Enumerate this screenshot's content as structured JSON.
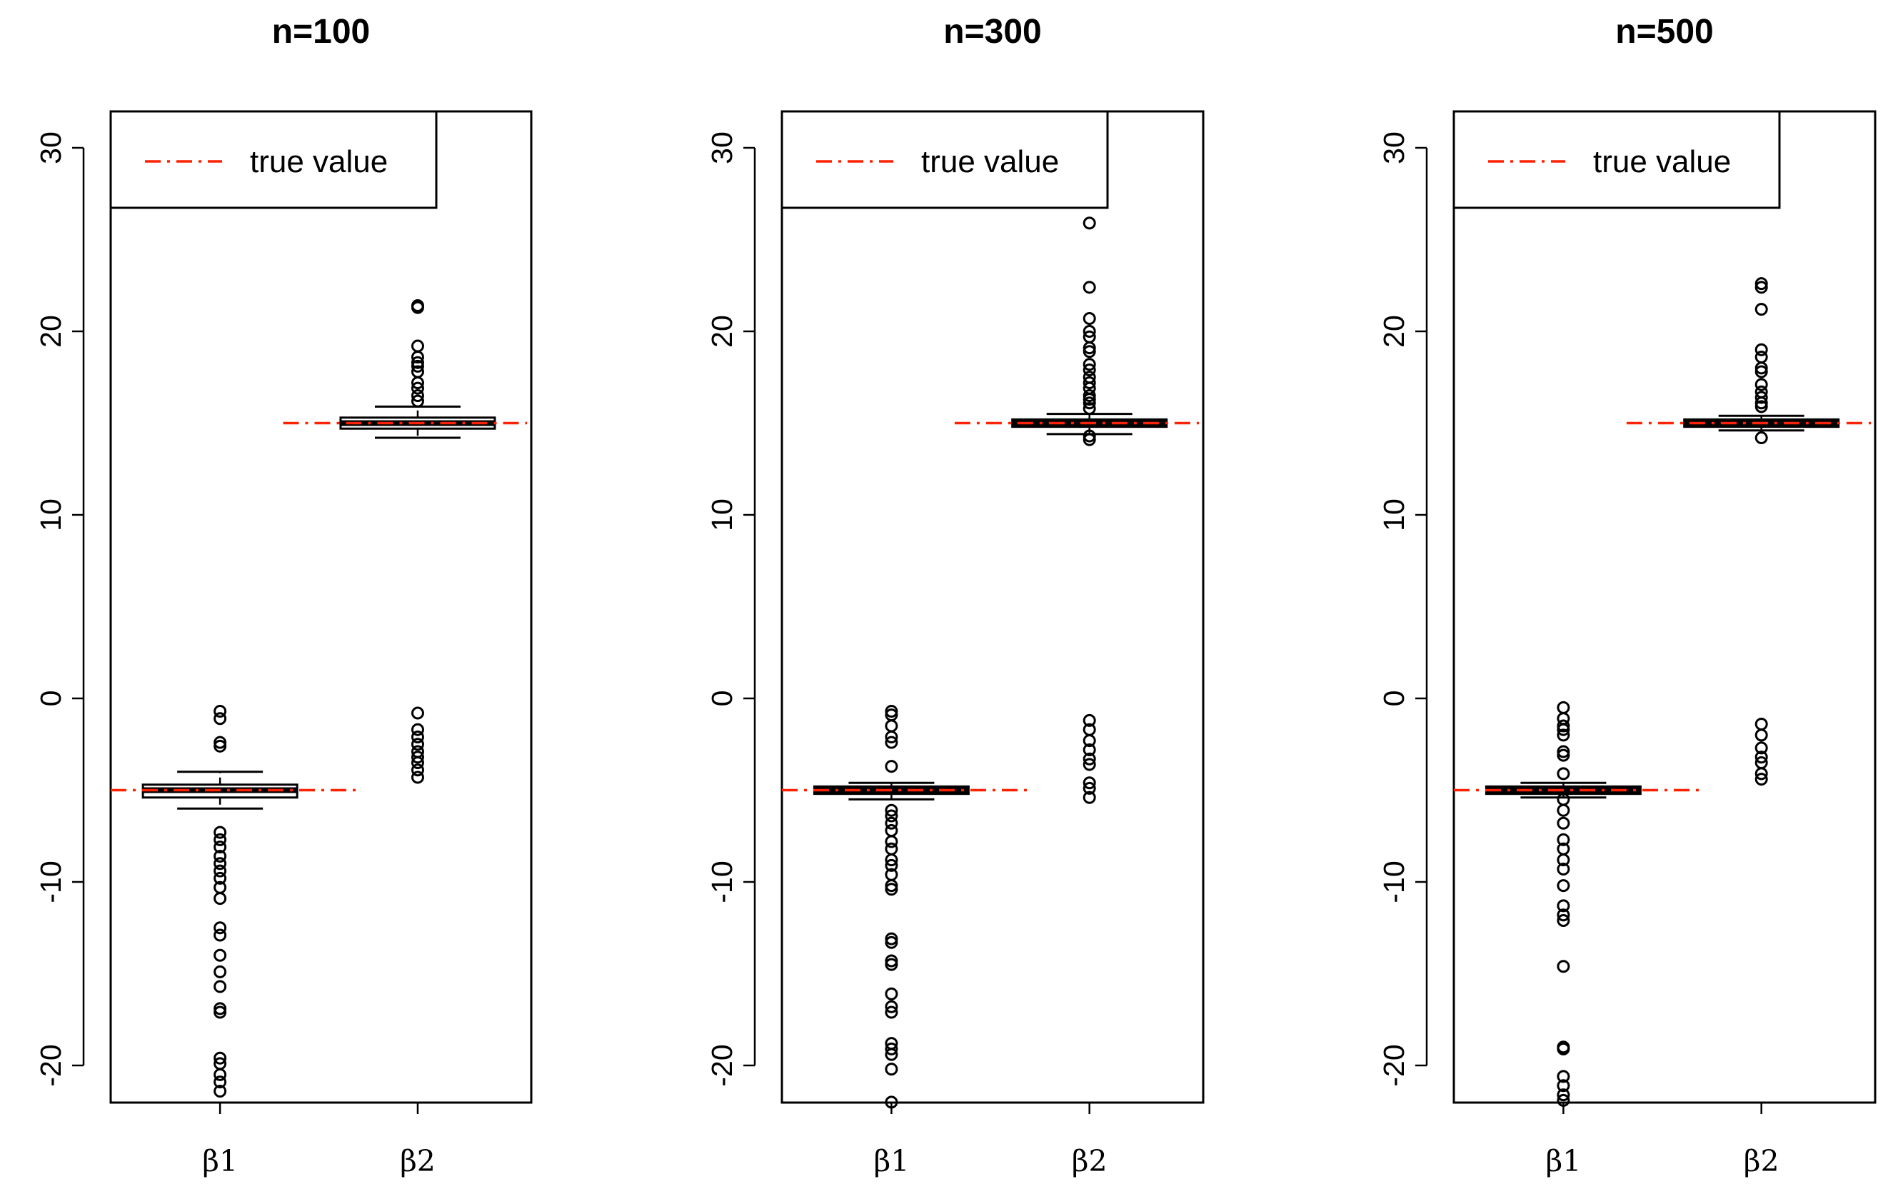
{
  "chart_data": [
    {
      "type": "boxplot",
      "title": "n=100",
      "categories": [
        "β1",
        "β2"
      ],
      "ylim": [
        -22,
        32
      ],
      "yticks": [
        30,
        20,
        10,
        0,
        -10,
        -20
      ],
      "legend": {
        "label": "true value",
        "color": "#ff2200",
        "position": "top-left"
      },
      "true_values": [
        -5,
        15
      ],
      "boxes": [
        {
          "name": "β1",
          "whisker_low": -6.0,
          "q1": -5.4,
          "median": -5.0,
          "q3": -4.7,
          "whisker_high": -4.0,
          "outliers": [
            -0.7,
            -1.1,
            -2.4,
            -2.6,
            -7.3,
            -7.7,
            -8.1,
            -8.6,
            -9.0,
            -9.4,
            -9.8,
            -10.3,
            -10.9,
            -12.5,
            -12.9,
            -14.0,
            -14.9,
            -15.7,
            -16.9,
            -17.1,
            -19.6,
            -19.9,
            -20.5,
            -20.9,
            -21.4
          ]
        },
        {
          "name": "β2",
          "whisker_low": 14.2,
          "q1": 14.7,
          "median": 15.0,
          "q3": 15.3,
          "whisker_high": 15.9,
          "outliers": [
            21.4,
            21.3,
            19.2,
            18.6,
            18.3,
            18.1,
            17.8,
            17.2,
            16.9,
            16.5,
            16.2,
            -0.8,
            -1.7,
            -2.1,
            -2.5,
            -2.9,
            -3.2,
            -3.5,
            -3.9,
            -4.3
          ]
        }
      ]
    },
    {
      "type": "boxplot",
      "title": "n=300",
      "categories": [
        "β1",
        "β2"
      ],
      "ylim": [
        -22,
        32
      ],
      "yticks": [
        30,
        20,
        10,
        0,
        -10,
        -20
      ],
      "legend": {
        "label": "true value",
        "color": "#ff2200",
        "position": "top-left"
      },
      "true_values": [
        -5,
        15
      ],
      "boxes": [
        {
          "name": "β1",
          "whisker_low": -5.5,
          "q1": -5.2,
          "median": -5.0,
          "q3": -4.8,
          "whisker_high": -4.6,
          "outliers": [
            -0.7,
            -0.9,
            -1.5,
            -2.1,
            -2.4,
            -3.7,
            -6.1,
            -6.4,
            -6.8,
            -7.2,
            -7.8,
            -8.2,
            -8.8,
            -9.1,
            -9.6,
            -10.2,
            -10.4,
            -13.1,
            -13.3,
            -14.3,
            -14.5,
            -16.1,
            -16.8,
            -17.1,
            -18.8,
            -19.1,
            -19.4,
            -20.2,
            -22.0
          ]
        },
        {
          "name": "β2",
          "whisker_low": 14.4,
          "q1": 14.8,
          "median": 15.0,
          "q3": 15.2,
          "whisker_high": 15.5,
          "outliers": [
            25.9,
            22.4,
            20.7,
            20.0,
            19.7,
            19.1,
            18.9,
            18.2,
            17.9,
            17.5,
            17.2,
            16.9,
            16.5,
            16.3,
            16.1,
            15.8,
            14.3,
            14.1,
            -1.2,
            -1.7,
            -2.3,
            -2.8,
            -3.3,
            -3.6,
            -4.6,
            -4.9,
            -5.4
          ]
        }
      ]
    },
    {
      "type": "boxplot",
      "title": "n=500",
      "categories": [
        "β1",
        "β2"
      ],
      "ylim": [
        -22,
        32
      ],
      "yticks": [
        30,
        20,
        10,
        0,
        -10,
        -20
      ],
      "legend": {
        "label": "true value",
        "color": "#ff2200",
        "position": "top-left"
      },
      "true_values": [
        -5,
        15
      ],
      "boxes": [
        {
          "name": "β1",
          "whisker_low": -5.4,
          "q1": -5.2,
          "median": -5.0,
          "q3": -4.8,
          "whisker_high": -4.6,
          "outliers": [
            -0.5,
            -1.1,
            -1.5,
            -1.7,
            -2.0,
            -2.9,
            -3.1,
            -4.1,
            -5.5,
            -6.1,
            -6.8,
            -7.7,
            -8.2,
            -8.8,
            -9.3,
            -10.2,
            -11.3,
            -11.8,
            -12.1,
            -14.6,
            -19.0,
            -19.1,
            -20.6,
            -21.1,
            -21.6,
            -21.9
          ]
        },
        {
          "name": "β2",
          "whisker_low": 14.6,
          "q1": 14.8,
          "median": 15.0,
          "q3": 15.2,
          "whisker_high": 15.4,
          "outliers": [
            22.6,
            22.4,
            21.2,
            19.0,
            18.6,
            18.0,
            17.8,
            17.1,
            16.7,
            16.4,
            16.1,
            15.9,
            14.2,
            -1.4,
            -2.0,
            -2.7,
            -3.2,
            -3.5,
            -4.1,
            -4.4
          ]
        }
      ]
    }
  ]
}
